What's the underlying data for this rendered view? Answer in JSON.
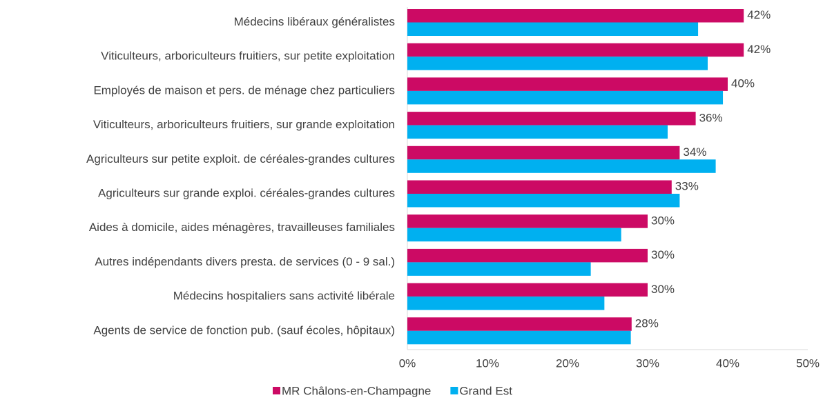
{
  "chart_data": {
    "type": "bar",
    "orientation": "horizontal",
    "categories": [
      "Médecins libéraux généralistes",
      "Viticulteurs, arboriculteurs fruitiers, sur petite exploitation",
      "Employés de maison et pers. de ménage chez particuliers",
      "Viticulteurs, arboriculteurs fruitiers, sur grande exploitation",
      "Agriculteurs sur petite exploit. de céréales-grandes cultures",
      "Agriculteurs sur grande exploi. céréales-grandes cultures",
      "Aides à domicile, aides ménagères, travailleuses familiales",
      "Autres indépendants divers presta. de services (0 - 9 sal.)",
      "Médecins hospitaliers sans activité libérale",
      "Agents de service de fonction pub. (sauf écoles, hôpitaux)"
    ],
    "series": [
      {
        "name": "MR Châlons-en-Champagne",
        "color": "#cc0a64",
        "values": [
          42,
          42,
          40,
          36,
          34,
          33,
          30,
          30,
          30,
          28
        ],
        "value_labels": [
          "42%",
          "42%",
          "40%",
          "36%",
          "34%",
          "33%",
          "30%",
          "30%",
          "30%",
          "28%"
        ]
      },
      {
        "name": "Grand Est",
        "color": "#00b0f0",
        "values": [
          36.3,
          37.5,
          39.4,
          32.5,
          38.5,
          34.0,
          26.7,
          22.9,
          24.6,
          27.9
        ]
      }
    ],
    "xlim": [
      0,
      50
    ],
    "xticks": [
      {
        "value": 0,
        "label": "0%"
      },
      {
        "value": 10,
        "label": "10%"
      },
      {
        "value": 20,
        "label": "20%"
      },
      {
        "value": 30,
        "label": "30%"
      },
      {
        "value": 40,
        "label": "40%"
      },
      {
        "value": 50,
        "label": "50%"
      }
    ],
    "legend": "bottom"
  }
}
